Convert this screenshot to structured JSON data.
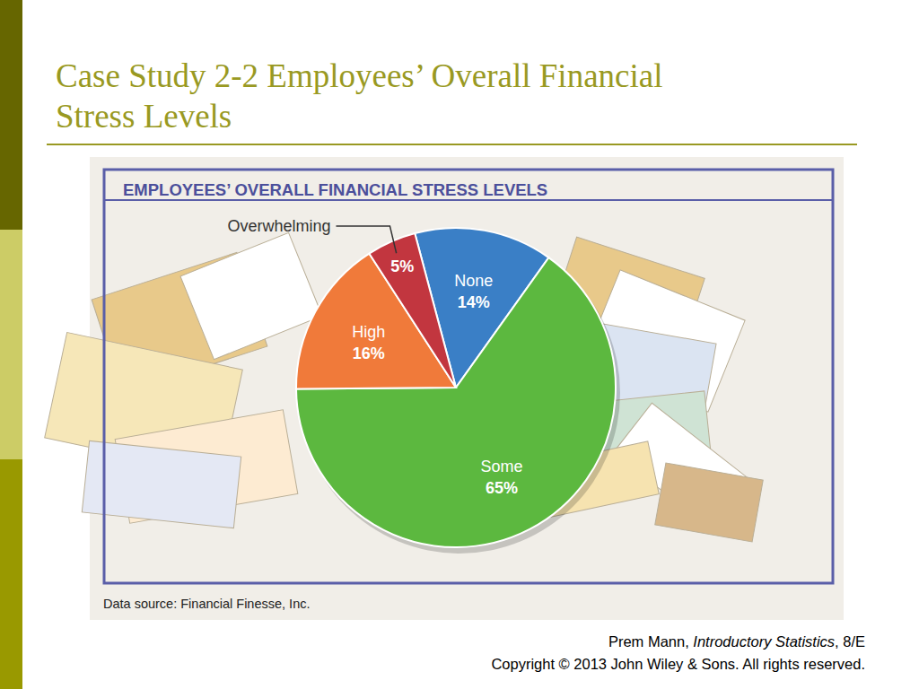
{
  "slide": {
    "title": [
      "Case Study 2-2 Employees’ Overall Financial",
      "Stress Levels"
    ],
    "footer": [
      [
        "Prem Mann, ",
        "Introductory Statistics",
        ", 8/E"
      ],
      [
        "Copyright © 2013 John Wiley & Sons. All rights reserved."
      ]
    ]
  },
  "chart_data": {
    "type": "pie",
    "title": "EMPLOYEES’ OVERALL FINANCIAL STRESS LEVELS",
    "categories": [
      "None",
      "Some",
      "High",
      "Overwhelming"
    ],
    "values": [
      14,
      65,
      16,
      5
    ],
    "value_labels": [
      "14%",
      "65%",
      "16%",
      "5%"
    ],
    "colors": [
      "#3a7fc6",
      "#5cb83f",
      "#f07a3a",
      "#c2363f"
    ],
    "data_labels": true,
    "source": "Data source: Financial Finesse, Inc."
  }
}
